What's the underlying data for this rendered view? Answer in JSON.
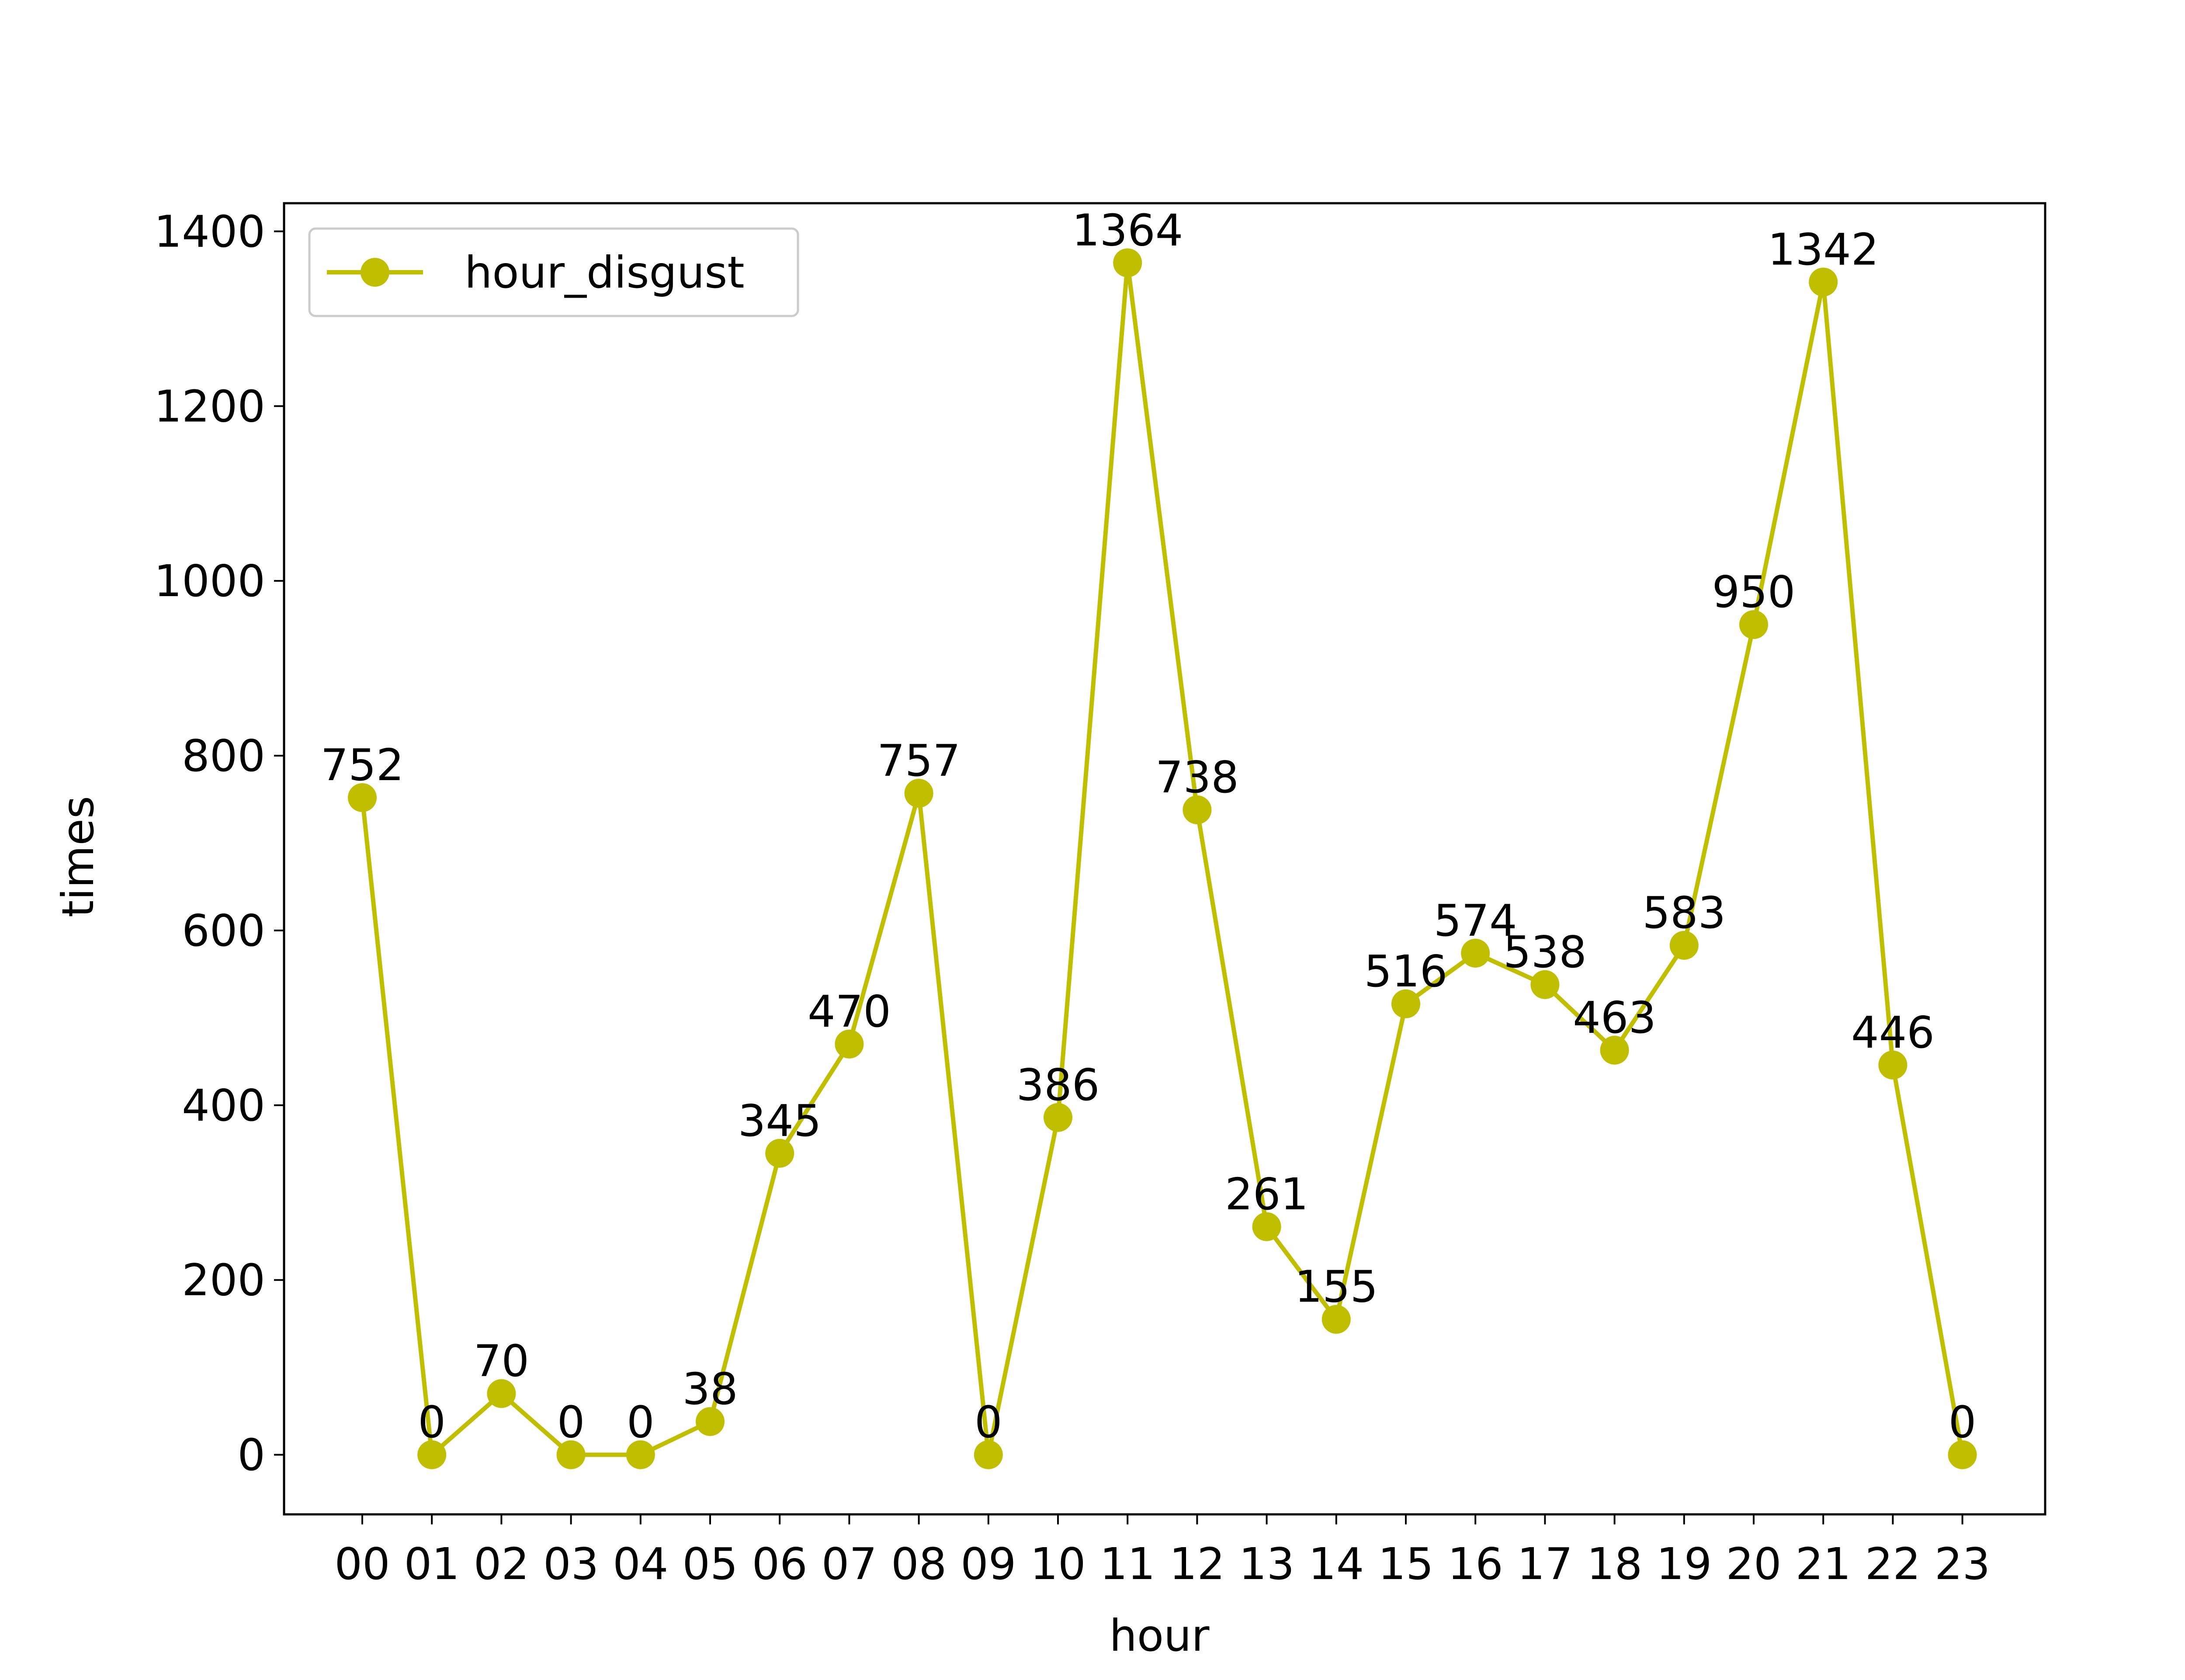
{
  "chart_data": {
    "type": "line",
    "title": "",
    "xlabel": "hour",
    "ylabel": "times",
    "categories": [
      "00",
      "01",
      "02",
      "03",
      "04",
      "05",
      "06",
      "07",
      "08",
      "09",
      "10",
      "11",
      "12",
      "13",
      "14",
      "15",
      "16",
      "17",
      "18",
      "19",
      "20",
      "21",
      "22",
      "23"
    ],
    "series": [
      {
        "name": "hour_disgust",
        "values": [
          752,
          0,
          70,
          0,
          0,
          38,
          345,
          470,
          757,
          0,
          386,
          1364,
          738,
          261,
          155,
          516,
          574,
          538,
          463,
          583,
          950,
          1342,
          446,
          0
        ],
        "color": "#bfbf00",
        "marker": "circle"
      }
    ],
    "data_labels": true,
    "ylim": [
      -68.2,
      1432.2
    ],
    "yticks": [
      0,
      200,
      400,
      600,
      800,
      1000,
      1200,
      1400
    ],
    "grid": false,
    "legend_position": "upper-left"
  }
}
